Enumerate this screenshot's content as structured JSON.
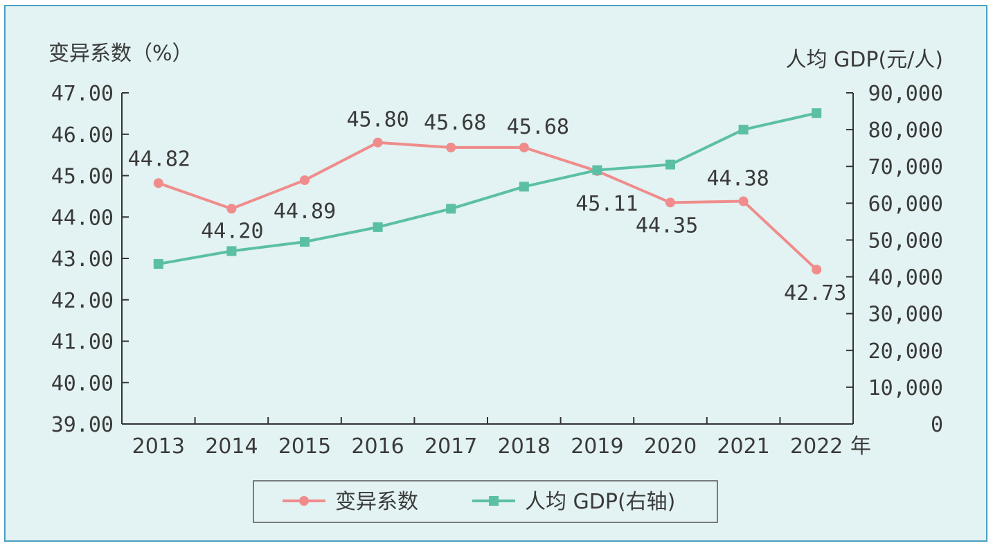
{
  "chart_data": {
    "type": "line",
    "left_axis_title": "变异系数（%）",
    "right_axis_title": "人均 GDP(元/人)",
    "x_unit": "年",
    "categories": [
      "2013",
      "2014",
      "2015",
      "2016",
      "2017",
      "2018",
      "2019",
      "2020",
      "2021",
      "2022"
    ],
    "left_axis": {
      "min": 39,
      "max": 47,
      "ticks": [
        "39.00",
        "40.00",
        "41.00",
        "42.00",
        "43.00",
        "44.00",
        "45.00",
        "46.00",
        "47.00"
      ]
    },
    "right_axis": {
      "min": 0,
      "max": 90000,
      "ticks": [
        "0",
        "10,000",
        "20,000",
        "30,000",
        "40,000",
        "50,000",
        "60,000",
        "70,000",
        "80,000",
        "90,000"
      ]
    },
    "series": [
      {
        "name": "变异系数",
        "axis": "left",
        "color": "#f08c8c",
        "marker": "circle",
        "values": [
          44.82,
          44.2,
          44.89,
          45.8,
          45.68,
          45.68,
          45.11,
          44.35,
          44.38,
          42.73
        ],
        "labels": [
          "44.82",
          "44.20",
          "44.89",
          "45.80",
          "45.68",
          "45.68",
          "45.11",
          "44.35",
          "44.38",
          "42.73"
        ]
      },
      {
        "name": "人均 GDP(右轴)",
        "axis": "right",
        "color": "#5bbfa6",
        "marker": "square",
        "values": [
          43500,
          47000,
          49500,
          53500,
          58500,
          64500,
          69000,
          70500,
          80000,
          84500
        ]
      }
    ],
    "legend_position": "bottom-center",
    "grid": false
  }
}
